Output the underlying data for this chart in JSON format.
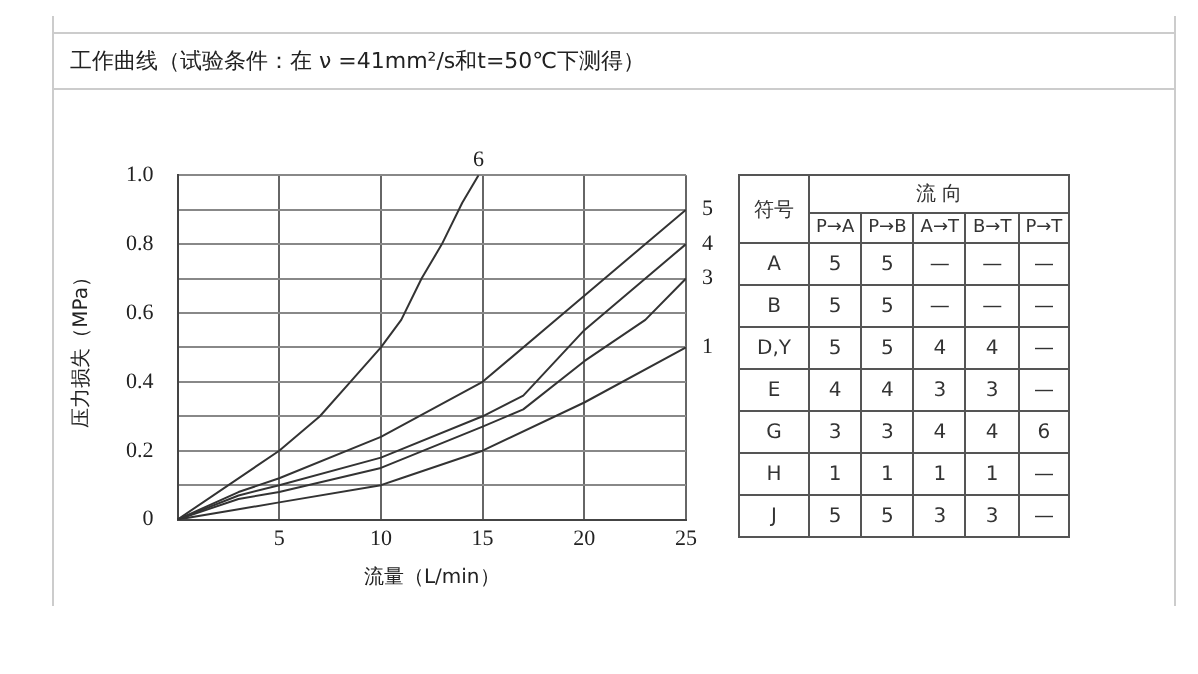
{
  "chart_data": [
    {
      "type": "line",
      "title": "工作曲线（试验条件：在 ν =41mm²/s和t=50℃下测得）",
      "xlabel": "流量（L/min）",
      "ylabel": "压力损失（MPa）",
      "xlim": [
        0,
        25
      ],
      "xticks": [
        5,
        10,
        15,
        20,
        25
      ],
      "ylim": [
        0,
        1
      ],
      "yticks": [
        0,
        {
          "value": 0.1,
          "label": null
        },
        {
          "value": 0.2,
          "label": "0.2"
        },
        {
          "value": 0.3,
          "label": null
        },
        {
          "value": 0.4,
          "label": "0.4"
        },
        {
          "value": 0.5,
          "label": null
        },
        {
          "value": 0.6,
          "label": "0.6"
        },
        {
          "value": 0.7,
          "label": null
        },
        {
          "value": 0.8,
          "label": "0.8"
        },
        {
          "value": 0.9,
          "label": null
        },
        {
          "value": 1,
          "label": "1.0"
        }
      ],
      "grid": true,
      "legend": false,
      "marker": "none",
      "line_style": "solid",
      "series": [
        {
          "name": "6",
          "color": "#333333",
          "x": [
            0,
            5,
            7,
            8.5,
            10,
            11,
            12,
            13,
            14,
            14.8
          ],
          "values": [
            0,
            0.2,
            0.3,
            0.4,
            0.5,
            0.58,
            0.7,
            0.8,
            0.92,
            1.0
          ]
        },
        {
          "name": "5",
          "color": "#333333",
          "x": [
            0,
            3,
            5,
            10,
            15,
            20,
            25
          ],
          "values": [
            0,
            0.08,
            0.12,
            0.24,
            0.4,
            0.65,
            0.9
          ]
        },
        {
          "name": "4",
          "color": "#333333",
          "x": [
            0,
            3,
            5,
            10,
            15,
            17,
            20,
            25
          ],
          "values": [
            0,
            0.07,
            0.1,
            0.18,
            0.3,
            0.36,
            0.55,
            0.8
          ]
        },
        {
          "name": "3",
          "color": "#333333",
          "x": [
            0,
            3,
            5,
            10,
            15,
            17,
            20,
            23,
            25
          ],
          "values": [
            0,
            0.06,
            0.08,
            0.15,
            0.27,
            0.32,
            0.46,
            0.58,
            0.7
          ]
        },
        {
          "name": "1",
          "color": "#333333",
          "x": [
            0,
            5,
            10,
            11,
            15,
            20,
            25
          ],
          "values": [
            0,
            0.05,
            0.1,
            0.12,
            0.2,
            0.34,
            0.5
          ]
        }
      ]
    },
    {
      "type": "other",
      "title": "流 向",
      "ylabel": "符号",
      "categories": [
        "P→A",
        "P→B",
        "A→T",
        "B→T",
        "P→T"
      ],
      "y_categories": [
        "A",
        "B",
        "D,Y",
        "E",
        "G",
        "H",
        "J"
      ],
      "cell_labels": [
        [
          "5",
          "5",
          "—",
          "—",
          "—"
        ],
        [
          "5",
          "5",
          "—",
          "—",
          "—"
        ],
        [
          "5",
          "5",
          "4",
          "4",
          "—"
        ],
        [
          "4",
          "4",
          "3",
          "3",
          "—"
        ],
        [
          "3",
          "3",
          "4",
          "4",
          "6"
        ],
        [
          "1",
          "1",
          "1",
          "1",
          "—"
        ],
        [
          "5",
          "5",
          "3",
          "3",
          "—"
        ]
      ]
    }
  ]
}
